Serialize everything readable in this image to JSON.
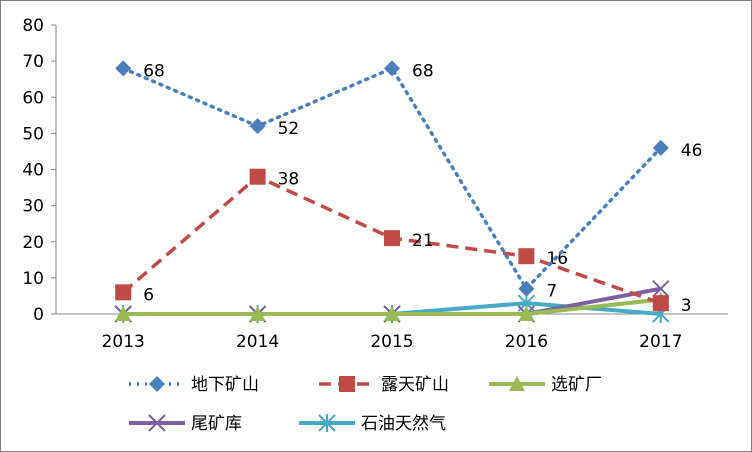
{
  "chart_data": {
    "type": "line",
    "title": "",
    "xlabel": "",
    "ylabel": "",
    "categories": [
      "2013",
      "2014",
      "2015",
      "2016",
      "2017"
    ],
    "ylim": [
      0,
      80
    ],
    "yticks": [
      "0",
      "10",
      "20",
      "30",
      "40",
      "50",
      "60",
      "70",
      "80"
    ],
    "grid": false,
    "legend_position": "bottom",
    "series": [
      {
        "name": "地下矿山",
        "values": [
          68,
          52,
          68,
          7,
          46
        ],
        "color": "#4a7ebb",
        "dash": "dot",
        "marker": "diamond",
        "labels": [
          "68",
          "52",
          "68",
          "7",
          "46"
        ]
      },
      {
        "name": "露天矿山",
        "values": [
          6,
          38,
          21,
          16,
          3
        ],
        "color": "#be4b48",
        "dash": "dash",
        "marker": "square",
        "labels": [
          "6",
          "38",
          "21",
          "16",
          "3"
        ]
      },
      {
        "name": "选矿厂",
        "values": [
          0,
          0,
          0,
          0,
          4
        ],
        "color": "#98b954",
        "dash": "solid",
        "marker": "triangle"
      },
      {
        "name": "尾矿库",
        "values": [
          0,
          0,
          0,
          0,
          7
        ],
        "color": "#7d60a0",
        "dash": "solid",
        "marker": "x"
      },
      {
        "name": "石油天然气",
        "values": [
          0,
          0,
          0,
          3,
          0
        ],
        "color": "#46aac5",
        "dash": "solid",
        "marker": "star"
      }
    ]
  }
}
